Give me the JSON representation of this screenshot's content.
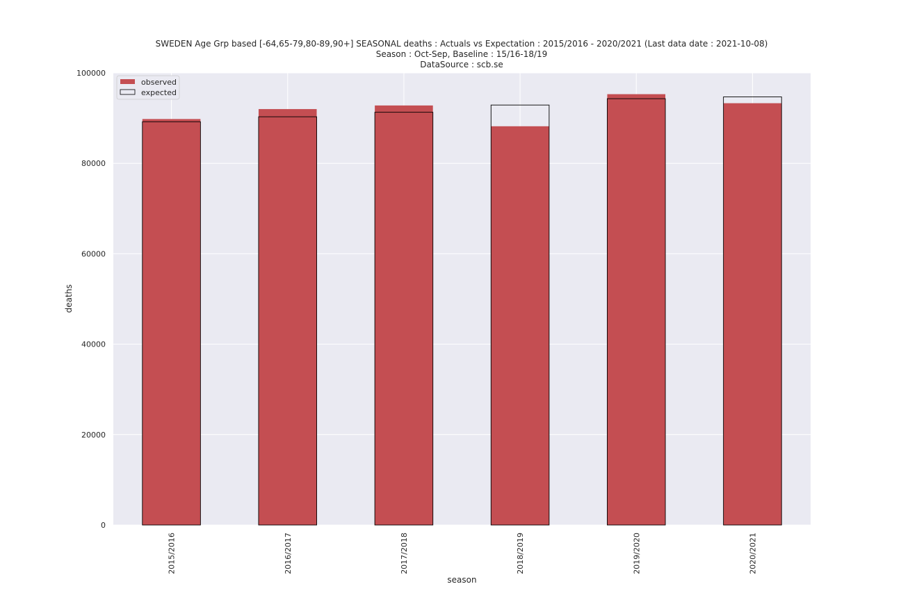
{
  "chart_data": {
    "type": "bar",
    "title": "SWEDEN Age Grp based [-64,65-79,80-89,90+] SEASONAL deaths : Actuals vs Expectation : 2015/2016 - 2020/2021 (Last data date : 2021-10-08)",
    "subtitle": "Season : Oct-Sep, Baseline : 15/16-18/19",
    "source": "DataSource : scb.se",
    "xlabel": "season",
    "ylabel": "deaths",
    "ylim": [
      0,
      100000
    ],
    "yticks": [
      0,
      20000,
      40000,
      60000,
      80000,
      100000
    ],
    "categories": [
      "2015/2016",
      "2016/2017",
      "2017/2018",
      "2018/2019",
      "2019/2020",
      "2020/2021"
    ],
    "series": [
      {
        "name": "observed",
        "values": [
          89800,
          92000,
          92800,
          88200,
          95300,
          93300
        ]
      },
      {
        "name": "expected",
        "values": [
          89200,
          90300,
          91300,
          92900,
          94300,
          94700
        ]
      }
    ],
    "legend_position": "top-left",
    "grid": true,
    "colors": {
      "observed": "#c44e52",
      "expected_edge": "#000000",
      "background": "#eaeaf2",
      "grid": "#ffffff"
    }
  }
}
